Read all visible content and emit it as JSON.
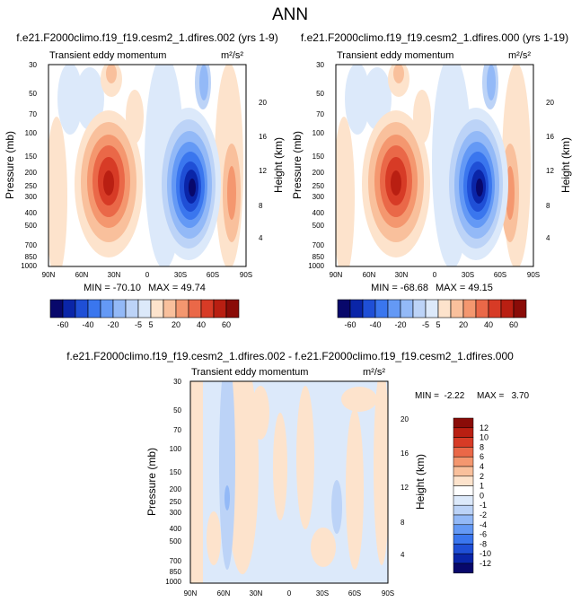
{
  "figure_title": "ANN",
  "chart_data": [
    {
      "type": "heatmap",
      "title": "f.e21.F2000climo.f19_f19.cesm2_1.dfires.002 (yrs 1-9)",
      "subtitle": "Transient eddy momentum",
      "units": "m²/s²",
      "xlabel": "",
      "ylabel": "Pressure (mb)",
      "ylabel_right": "Height (km)",
      "x_ticks": [
        "90N",
        "60N",
        "30N",
        "0",
        "30S",
        "60S",
        "90S"
      ],
      "y_ticks": [
        "30",
        "50",
        "70",
        "100",
        "150",
        "200",
        "250",
        "300",
        "400",
        "500",
        "700",
        "850",
        "1000"
      ],
      "y_ticks_right": [
        "20",
        "16",
        "12",
        "8",
        "4"
      ],
      "y_scale": "log",
      "min_label": "MIN = -70.10",
      "max_label": "MAX = 49.74",
      "min": -70.1,
      "max": 49.74,
      "features": [
        {
          "lat": 27,
          "p": 250,
          "value": 49.74
        },
        {
          "lat": -38,
          "p": 270,
          "value": -70.1
        }
      ],
      "colorbar_labels": [
        "-60",
        "-40",
        "-20",
        "-5",
        "5",
        "20",
        "40",
        "60"
      ]
    },
    {
      "type": "heatmap",
      "title": "f.e21.F2000climo.f19_f19.cesm2_1.dfires.000 (yrs 1-19)",
      "subtitle": "Transient eddy momentum",
      "units": "m²/s²",
      "xlabel": "",
      "ylabel": "Pressure (mb)",
      "ylabel_right": "Height (km)",
      "x_ticks": [
        "90N",
        "60N",
        "30N",
        "0",
        "30S",
        "60S",
        "90S"
      ],
      "y_ticks": [
        "30",
        "50",
        "70",
        "100",
        "150",
        "200",
        "250",
        "300",
        "400",
        "500",
        "700",
        "850",
        "1000"
      ],
      "y_ticks_right": [
        "20",
        "16",
        "12",
        "8",
        "4"
      ],
      "y_scale": "log",
      "min_label": "MIN = -68.68",
      "max_label": "MAX = 49.15",
      "min": -68.68,
      "max": 49.15,
      "features": [
        {
          "lat": 27,
          "p": 250,
          "value": 49.15
        },
        {
          "lat": -38,
          "p": 270,
          "value": -68.68
        }
      ],
      "colorbar_labels": [
        "-60",
        "-40",
        "-20",
        "-5",
        "5",
        "20",
        "40",
        "60"
      ]
    },
    {
      "type": "heatmap",
      "title": "f.e21.F2000climo.f19_f19.cesm2_1.dfires.002 - f.e21.F2000climo.f19_f19.cesm2_1.dfires.000",
      "subtitle": "Transient eddy momentum",
      "units": "m²/s²",
      "xlabel": "",
      "ylabel": "Pressure (mb)",
      "ylabel_right": "Height (km)",
      "x_ticks": [
        "90N",
        "60N",
        "30N",
        "0",
        "30S",
        "60S",
        "90S"
      ],
      "y_ticks": [
        "30",
        "50",
        "70",
        "100",
        "150",
        "200",
        "250",
        "300",
        "400",
        "500",
        "700",
        "850",
        "1000"
      ],
      "y_ticks_right": [
        "20",
        "16",
        "12",
        "8",
        "4"
      ],
      "y_scale": "log",
      "min_label": "MIN =  -2.22",
      "max_label": "MAX =   3.70",
      "min": -2.22,
      "max": 3.7,
      "colorbar_labels": [
        "12",
        "10",
        "8",
        "6",
        "4",
        "2",
        "1",
        "0",
        "-1",
        "-2",
        "-4",
        "-6",
        "-8",
        "-10",
        "-12"
      ]
    }
  ],
  "colors": {
    "diverging": [
      "#08086b",
      "#0a25a8",
      "#1f4fd6",
      "#3a76ee",
      "#6499f5",
      "#93b9f7",
      "#bcd3f7",
      "#dce9fa",
      "#ffffff",
      "#fde3cc",
      "#f9c09c",
      "#f4976f",
      "#ea6848",
      "#d73b26",
      "#b91f12",
      "#8a0c08"
    ]
  }
}
